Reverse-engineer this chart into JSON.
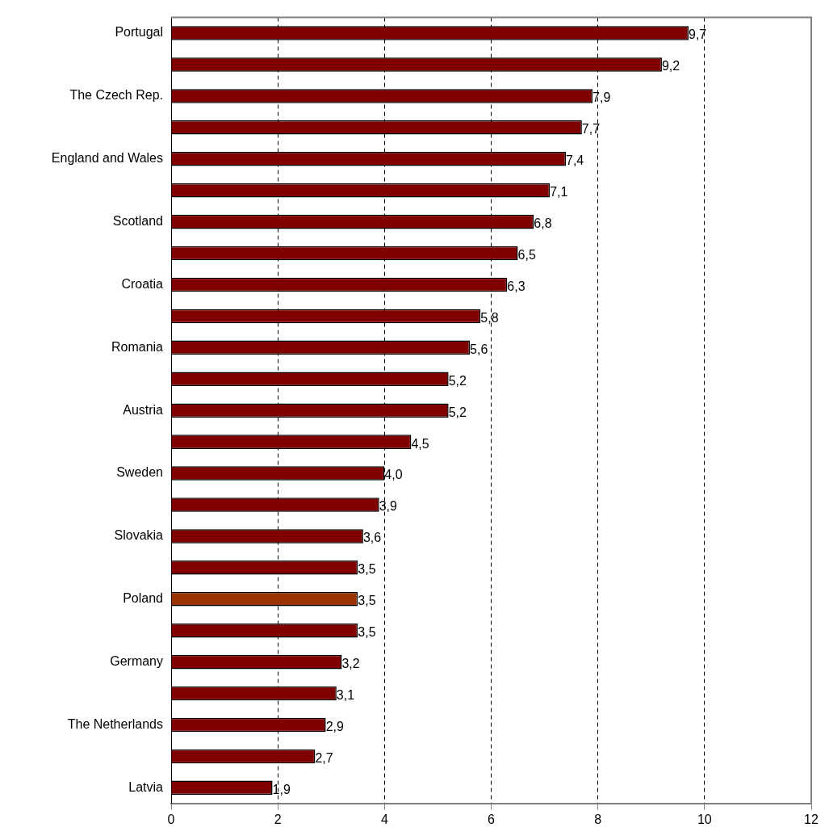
{
  "chart_data": {
    "type": "bar",
    "orientation": "horizontal",
    "categories": [
      "Portugal",
      null,
      "The Czech Rep.",
      null,
      "England and Wales",
      null,
      "Scotland",
      null,
      "Croatia",
      null,
      "Romania",
      null,
      "Austria",
      null,
      "Sweden",
      null,
      "Slovakia",
      null,
      "Poland",
      null,
      "Germany",
      null,
      "The Netherlands",
      null,
      "Latvia"
    ],
    "values": [
      9.7,
      9.2,
      7.9,
      7.7,
      7.4,
      7.1,
      6.8,
      6.5,
      6.3,
      5.8,
      5.6,
      5.2,
      5.2,
      4.5,
      4.0,
      3.9,
      3.6,
      3.5,
      3.5,
      3.5,
      3.2,
      3.1,
      2.9,
      2.7,
      1.9
    ],
    "value_labels": [
      "9,7",
      "9,2",
      "7,9",
      "7,7",
      "7,4",
      "7,1",
      "6,8",
      "6,5",
      "6,3",
      "5,8",
      "5,6",
      "5,2",
      "5,2",
      "4,5",
      "4,0",
      "3,9",
      "3,6",
      "3,5",
      "3,5",
      "3,5",
      "3,2",
      "3,1",
      "2,9",
      "2,7",
      "1,9"
    ],
    "colors": [
      "#800000",
      "#800000",
      "#800000",
      "#800000",
      "#800000",
      "#800000",
      "#800000",
      "#800000",
      "#800000",
      "#800000",
      "#800000",
      "#800000",
      "#800000",
      "#800000",
      "#800000",
      "#800000",
      "#800000",
      "#800000",
      "#993300",
      "#800000",
      "#800000",
      "#800000",
      "#800000",
      "#800000",
      "#800000"
    ],
    "xlim": [
      0,
      12
    ],
    "xticks": [
      0,
      2,
      4,
      6,
      8,
      10,
      12
    ],
    "grid": "x",
    "legend": false
  }
}
